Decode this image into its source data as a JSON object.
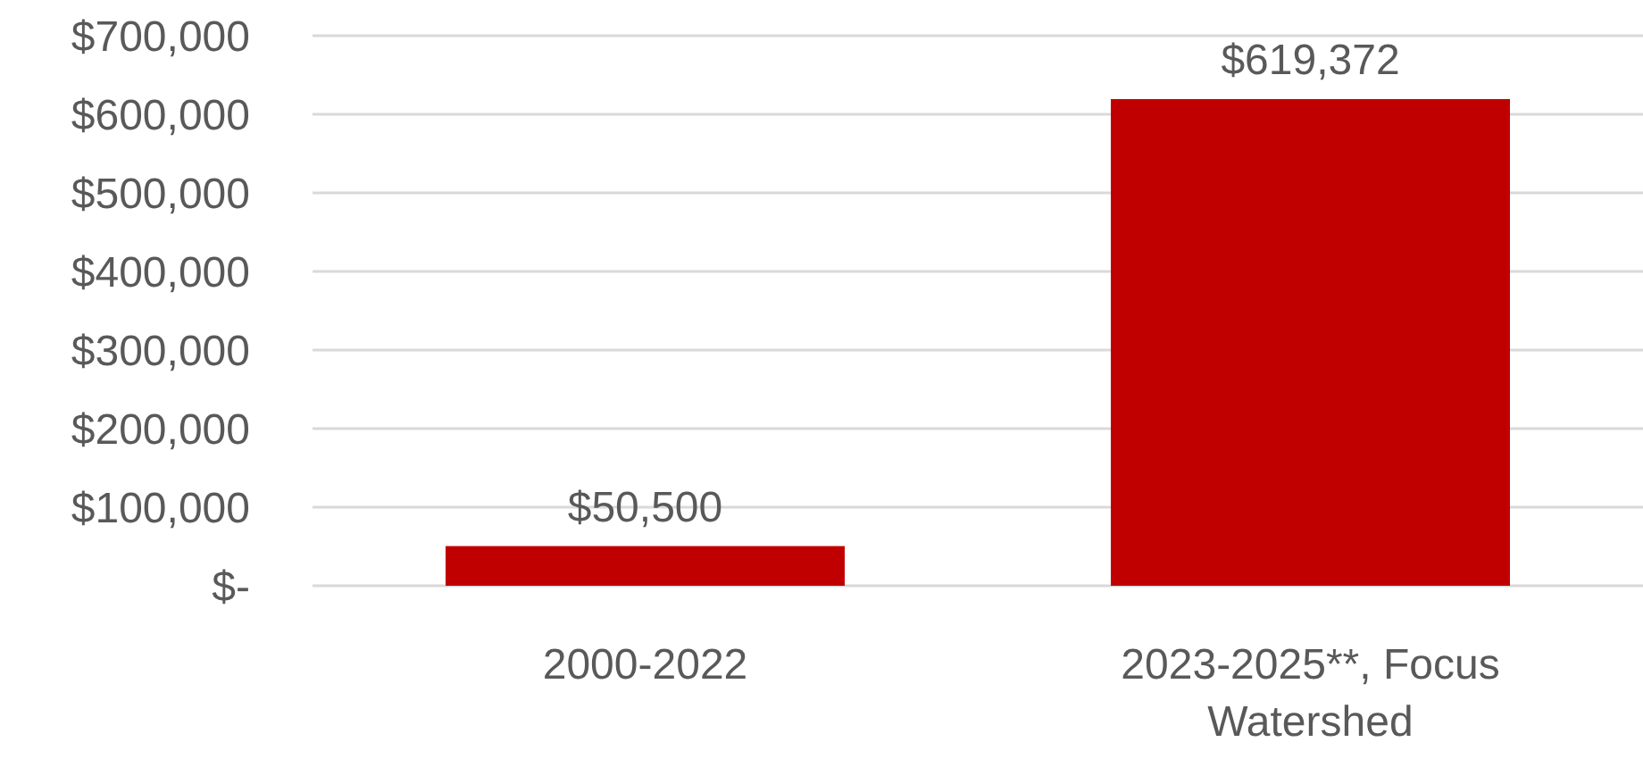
{
  "chart_data": {
    "type": "bar",
    "categories": [
      "2000-2022",
      "2023-2025**, Focus Watershed"
    ],
    "values": [
      50500,
      619372
    ],
    "color": "#c00000",
    "value_labels": [
      "$50,500",
      "$619,372"
    ],
    "ylim": [
      0,
      700000
    ],
    "yticks": [
      {
        "value": 0,
        "label": "$-"
      },
      {
        "value": 100000,
        "label": "$100,000"
      },
      {
        "value": 200000,
        "label": "$200,000"
      },
      {
        "value": 300000,
        "label": "$300,000"
      },
      {
        "value": 400000,
        "label": "$400,000"
      },
      {
        "value": 500000,
        "label": "$500,000"
      },
      {
        "value": 600000,
        "label": "$600,000"
      },
      {
        "value": 700000,
        "label": "$700,000"
      }
    ],
    "grid": "y"
  }
}
